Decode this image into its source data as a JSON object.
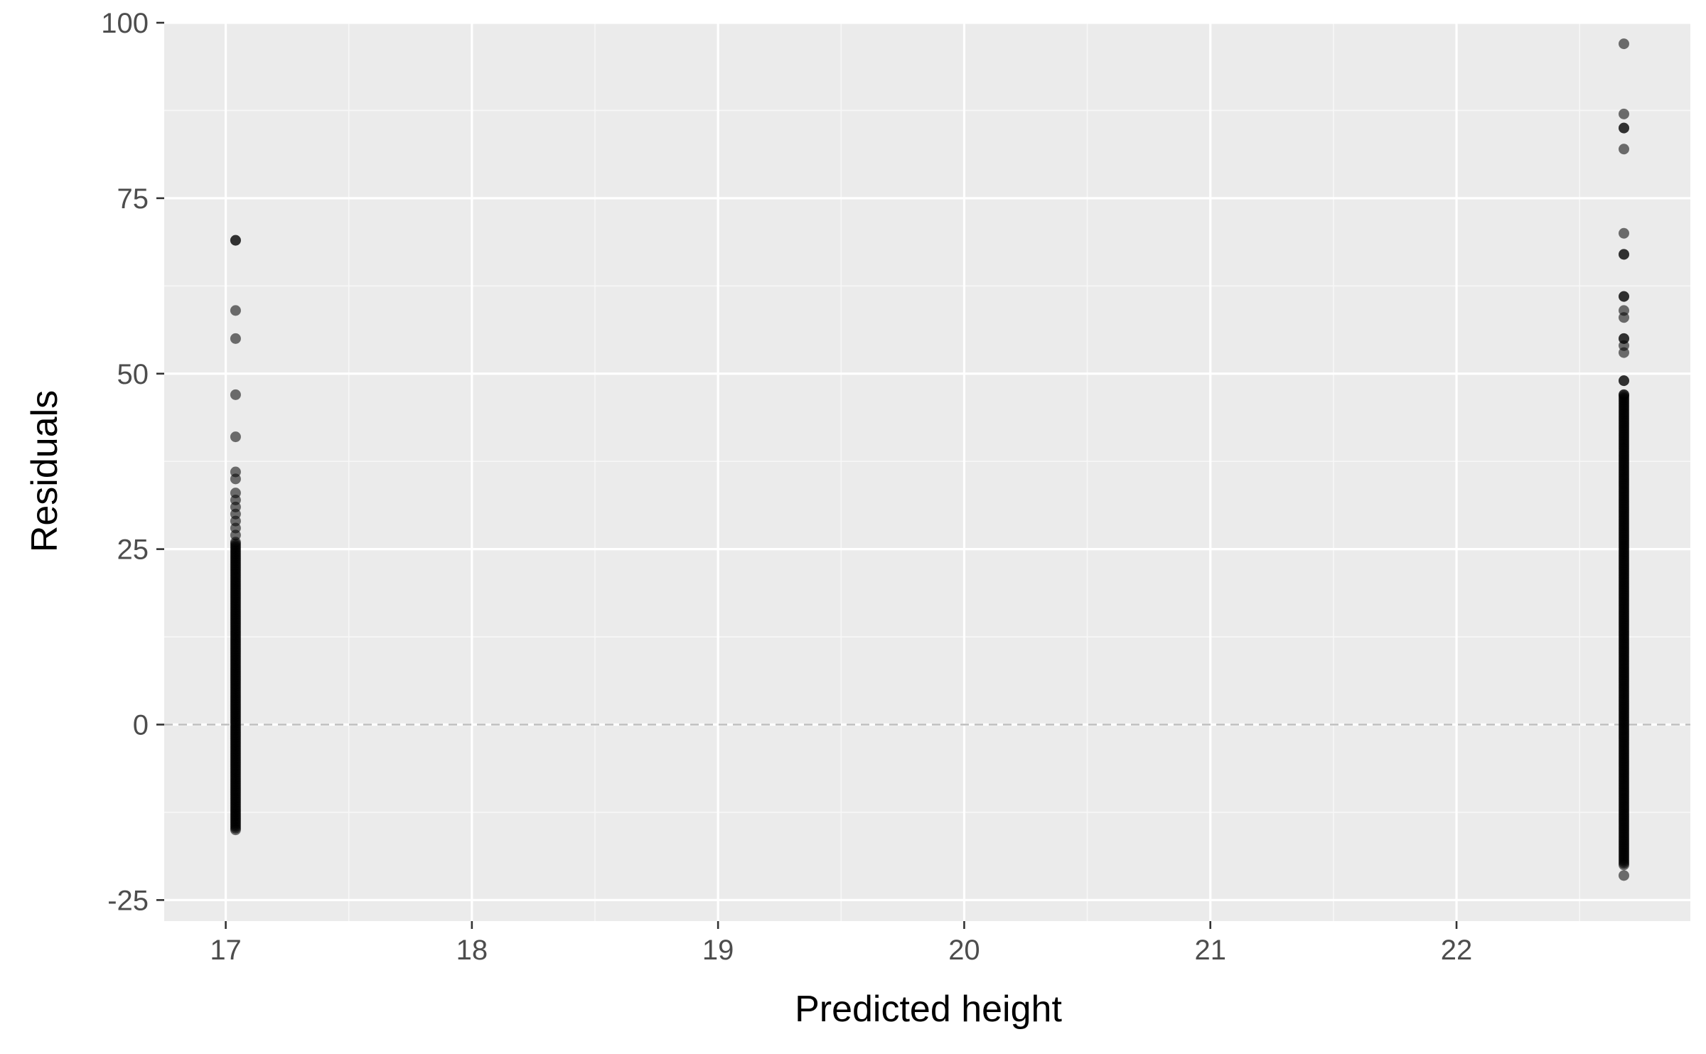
{
  "chart_data": {
    "type": "scatter",
    "title": "",
    "xlabel": "Predicted height",
    "ylabel": "Residuals",
    "xlim": [
      16.75,
      22.95
    ],
    "ylim": [
      -28,
      100
    ],
    "x_ticks": [
      17,
      18,
      19,
      20,
      21,
      22
    ],
    "x_tick_labels": [
      "17",
      "18",
      "19",
      "20",
      "21",
      "22"
    ],
    "y_ticks": [
      -25,
      0,
      25,
      50,
      75,
      100
    ],
    "y_tick_labels": [
      "-25",
      "0",
      "25",
      "50",
      "75",
      "100"
    ],
    "grid": true,
    "reference_line": {
      "y": 0,
      "style": "dashed",
      "color": "#bebebe"
    },
    "colors": {
      "panel_background": "#ebebeb",
      "grid_major": "#ffffff",
      "grid_minor": "#f7f7f7",
      "point": "#000000",
      "tick_mark": "#333333"
    },
    "point_alpha": 0.55,
    "groups": [
      {
        "x": 17.04,
        "dense_range": [
          -15,
          26
        ],
        "points": [
          69,
          69,
          59,
          55,
          47,
          41,
          36,
          35,
          33,
          32,
          31,
          30,
          29,
          28,
          27
        ]
      },
      {
        "x": 22.68,
        "dense_range": [
          -20,
          47
        ],
        "points": [
          97,
          87,
          85,
          85,
          82,
          70,
          67,
          67,
          61,
          61,
          59,
          58,
          55,
          55,
          54,
          53,
          49,
          49,
          47,
          -21.5
        ]
      }
    ]
  }
}
